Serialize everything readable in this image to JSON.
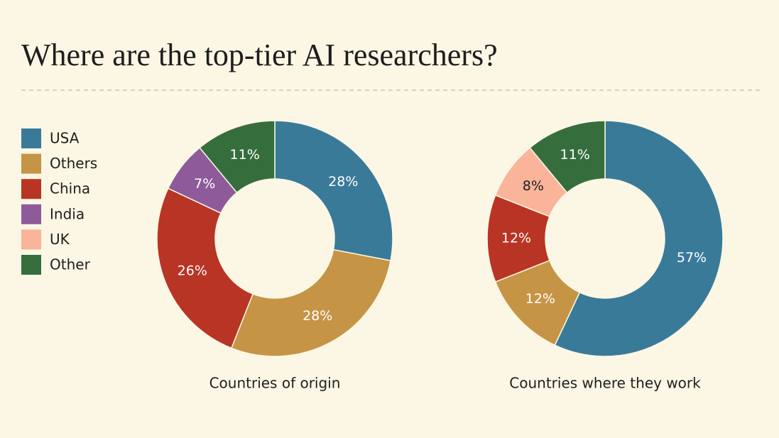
{
  "title": "Where are the top-tier AI researchers?",
  "legend": [
    {
      "name": "USA",
      "color": "#3a7a99"
    },
    {
      "name": "Others",
      "color": "#c69445"
    },
    {
      "name": "China",
      "color": "#b83424"
    },
    {
      "name": "India",
      "color": "#8e5a9a"
    },
    {
      "name": "UK",
      "color": "#f9b49a"
    },
    {
      "name": "Other",
      "color": "#356e3c"
    }
  ],
  "chart_data": [
    {
      "type": "pie",
      "caption": "Countries of origin",
      "categories": [
        "USA",
        "Others",
        "China",
        "India",
        "Other"
      ],
      "values": [
        28,
        28,
        26,
        7,
        11
      ],
      "value_labels": [
        "28%",
        "28%",
        "26%",
        "7%",
        "11%"
      ]
    },
    {
      "type": "pie",
      "caption": "Countries where they work",
      "categories": [
        "USA",
        "Others",
        "China",
        "UK",
        "Other"
      ],
      "values": [
        57,
        12,
        12,
        8,
        11
      ],
      "value_labels": [
        "57%",
        "12%",
        "12%",
        "8%",
        "11%"
      ]
    }
  ]
}
